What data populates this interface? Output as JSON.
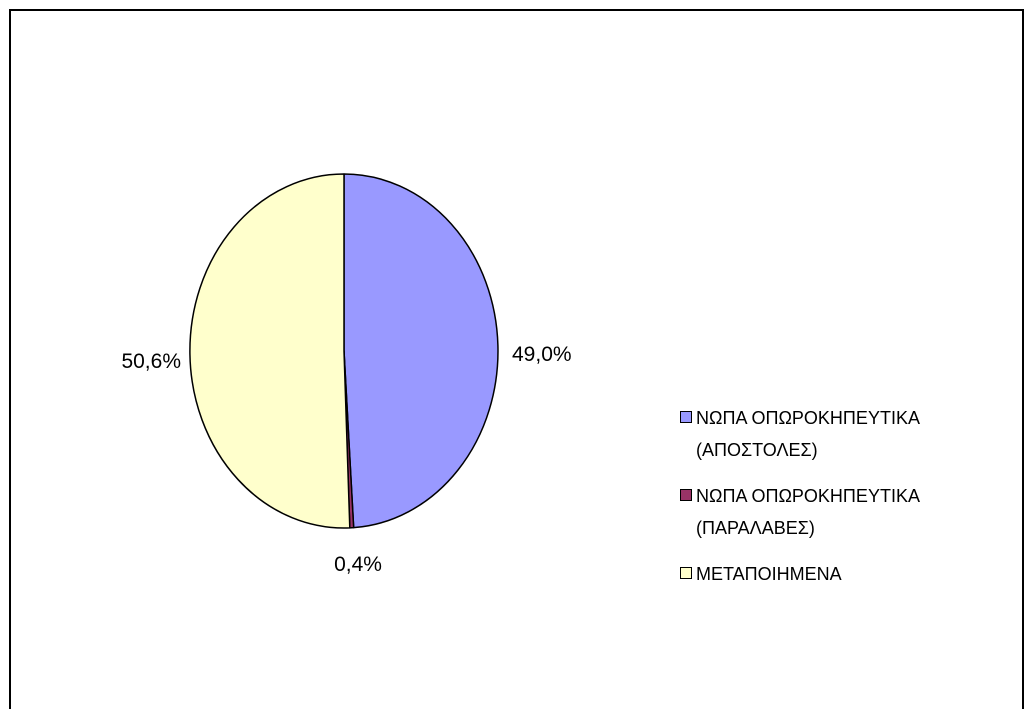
{
  "chart_data": {
    "type": "pie",
    "slices": [
      {
        "label": "ΝΩΠΑ ΟΠΩΡΟΚΗΠΕΥΤΙΚΑ (ΑΠΟΣΤΟΛΕΣ)",
        "value": 49.0,
        "display": "49,0%",
        "color": "#9999ff"
      },
      {
        "label": "ΝΩΠΑ ΟΠΩΡΟΚΗΠΕΥΤΙΚΑ (ΠΑΡΑΛΑΒΕΣ)",
        "value": 0.4,
        "display": "0,4%",
        "color": "#993366"
      },
      {
        "label": "ΜΕΤΑΠΟΙΗΜΕΝΑ",
        "value": 50.6,
        "display": "50,6%",
        "color": "#ffffcc"
      }
    ],
    "start_angle": "12 o'clock",
    "direction": "clockwise",
    "legend_position": "right"
  },
  "legend": {
    "items": [
      {
        "line1": "ΝΩΠΑ ΟΠΩΡΟΚΗΠΕΥΤΙΚΑ",
        "line2": "(ΑΠΟΣΤΟΛΕΣ)",
        "color": "#9999ff"
      },
      {
        "line1": "ΝΩΠΑ ΟΠΩΡΟΚΗΠΕΥΤΙΚΑ",
        "line2": "(ΠΑΡΑΛΑΒΕΣ)",
        "color": "#993366"
      },
      {
        "line1": "ΜΕΤΑΠΟΙΗΜΕΝΑ",
        "line2": "",
        "color": "#ffffcc"
      }
    ]
  }
}
